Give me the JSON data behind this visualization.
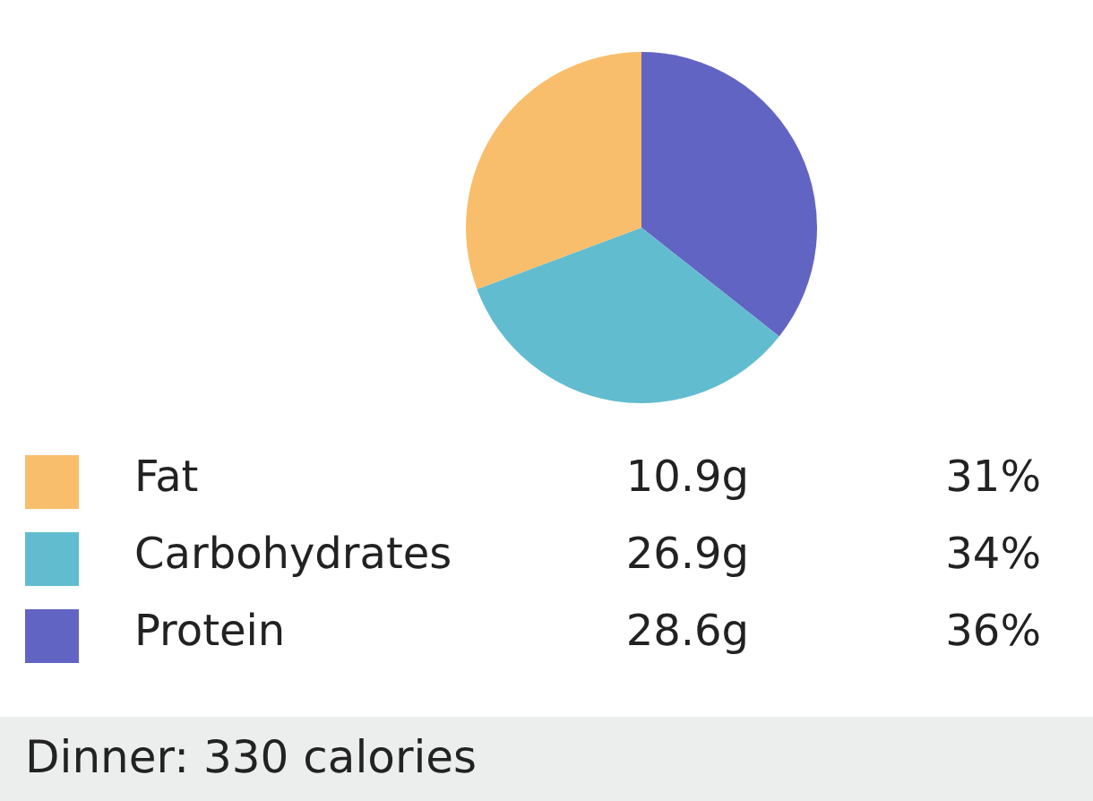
{
  "chart_data": {
    "type": "pie",
    "title": "Dinner: 330 calories",
    "categories": [
      "Fat",
      "Carbohydrates",
      "Protein"
    ],
    "values": [
      31,
      34,
      36
    ],
    "value_labels": [
      "31%",
      "34%",
      "36%"
    ],
    "annotations": [
      "10.9g",
      "26.9g",
      "28.6g"
    ],
    "colors": [
      "#f8be6b",
      "#62bcd0",
      "#6164c2"
    ],
    "legend": "bottom"
  }
}
